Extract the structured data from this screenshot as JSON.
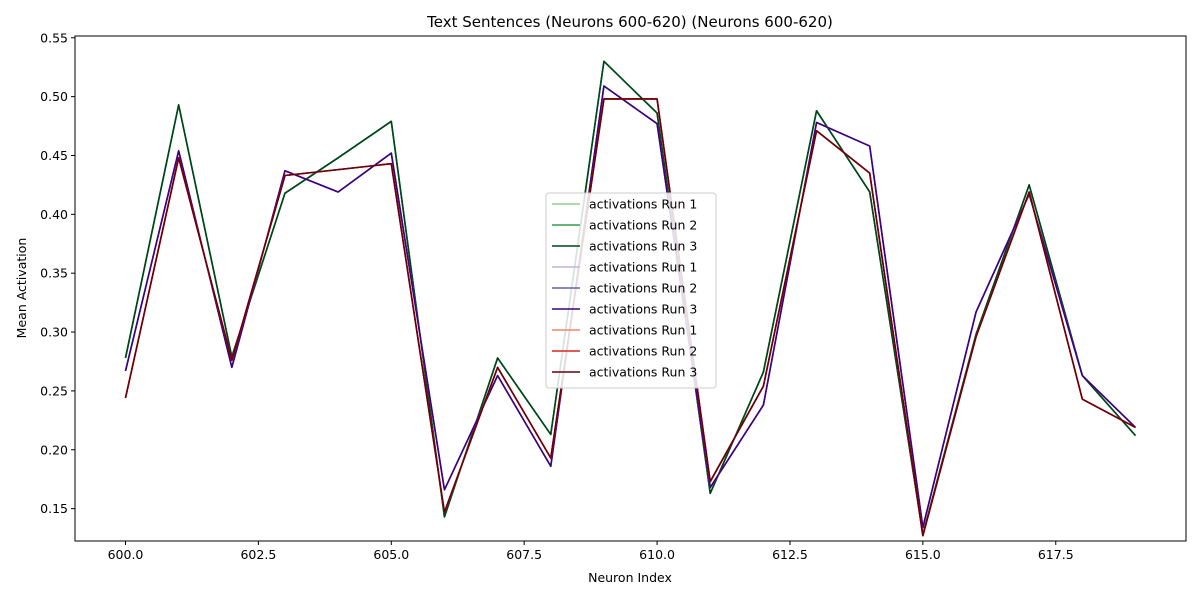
{
  "chart_data": {
    "type": "line",
    "title": "Text Sentences (Neurons 600-620) (Neurons 600-620)",
    "xlabel": "Neuron Index",
    "ylabel": "Mean Activation",
    "xlim": [
      599.05,
      619.95
    ],
    "ylim": [
      0.1225,
      0.5515
    ],
    "xticks": [
      "600.0",
      "602.5",
      "605.0",
      "607.5",
      "610.0",
      "612.5",
      "615.0",
      "617.5"
    ],
    "xtick_values": [
      600,
      602.5,
      605,
      607.5,
      610,
      612.5,
      615,
      617.5
    ],
    "yticks": [
      "0.15",
      "0.20",
      "0.25",
      "0.30",
      "0.35",
      "0.40",
      "0.45",
      "0.50",
      "0.55"
    ],
    "ytick_values": [
      0.15,
      0.2,
      0.25,
      0.3,
      0.35,
      0.4,
      0.45,
      0.5,
      0.55
    ],
    "grid": false,
    "legend_position": "center",
    "x": [
      600,
      601,
      602,
      603,
      604,
      605,
      606,
      607,
      608,
      609,
      610,
      611,
      612,
      613,
      614,
      615,
      616,
      617,
      618,
      619
    ],
    "series": [
      {
        "name": "activations Run 1",
        "color": "#8fd18f",
        "values": [
          0.278,
          0.493,
          0.279,
          0.418,
          0.448,
          0.479,
          0.143,
          0.278,
          0.213,
          0.53,
          0.486,
          0.163,
          0.266,
          0.488,
          0.419,
          0.128,
          0.298,
          0.425,
          0.263,
          0.212
        ]
      },
      {
        "name": "activations Run 2",
        "color": "#2e9e4f",
        "values": [
          0.278,
          0.493,
          0.279,
          0.418,
          0.448,
          0.479,
          0.143,
          0.278,
          0.213,
          0.53,
          0.486,
          0.163,
          0.266,
          0.488,
          0.419,
          0.128,
          0.298,
          0.425,
          0.263,
          0.212
        ]
      },
      {
        "name": "activations Run 3",
        "color": "#00441b",
        "values": [
          0.278,
          0.493,
          0.279,
          0.418,
          0.448,
          0.479,
          0.143,
          0.278,
          0.213,
          0.53,
          0.486,
          0.163,
          0.266,
          0.488,
          0.419,
          0.128,
          0.298,
          0.425,
          0.263,
          0.212
        ]
      },
      {
        "name": "activations Run 1",
        "color": "#b9b9dd",
        "values": [
          0.267,
          0.454,
          0.27,
          0.437,
          0.419,
          0.452,
          0.166,
          0.263,
          0.186,
          0.509,
          0.477,
          0.168,
          0.238,
          0.478,
          0.458,
          0.134,
          0.317,
          0.417,
          0.263,
          0.219
        ]
      },
      {
        "name": "activations Run 2",
        "color": "#6a5fb0",
        "values": [
          0.267,
          0.454,
          0.27,
          0.437,
          0.419,
          0.452,
          0.166,
          0.263,
          0.186,
          0.509,
          0.477,
          0.168,
          0.238,
          0.478,
          0.458,
          0.134,
          0.317,
          0.417,
          0.263,
          0.219
        ]
      },
      {
        "name": "activations Run 3",
        "color": "#3f007d",
        "values": [
          0.267,
          0.454,
          0.27,
          0.437,
          0.419,
          0.452,
          0.166,
          0.263,
          0.186,
          0.509,
          0.477,
          0.168,
          0.238,
          0.478,
          0.458,
          0.134,
          0.317,
          0.417,
          0.263,
          0.219
        ]
      },
      {
        "name": "activations Run 1",
        "color": "#f4836a",
        "values": [
          0.244,
          0.448,
          0.276,
          0.433,
          0.438,
          0.443,
          0.147,
          0.27,
          0.193,
          0.498,
          0.498,
          0.173,
          0.254,
          0.471,
          0.435,
          0.127,
          0.296,
          0.419,
          0.243,
          0.219
        ]
      },
      {
        "name": "activations Run 2",
        "color": "#d9261c",
        "values": [
          0.244,
          0.448,
          0.276,
          0.433,
          0.438,
          0.443,
          0.147,
          0.27,
          0.193,
          0.498,
          0.498,
          0.173,
          0.254,
          0.471,
          0.435,
          0.127,
          0.296,
          0.419,
          0.243,
          0.219
        ]
      },
      {
        "name": "activations Run 3",
        "color": "#67000d",
        "values": [
          0.244,
          0.448,
          0.276,
          0.433,
          0.438,
          0.443,
          0.147,
          0.27,
          0.193,
          0.498,
          0.498,
          0.173,
          0.254,
          0.471,
          0.435,
          0.127,
          0.296,
          0.419,
          0.243,
          0.219
        ]
      }
    ]
  }
}
